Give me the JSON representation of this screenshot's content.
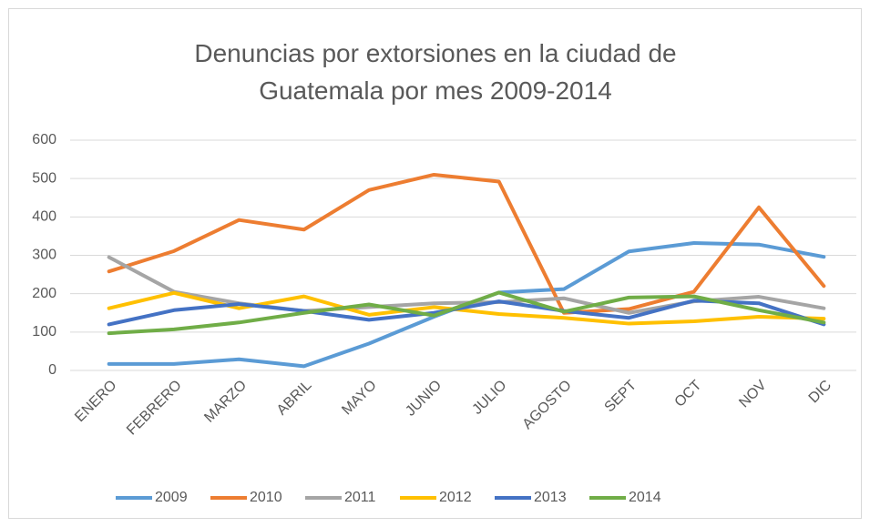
{
  "chart_data": {
    "type": "line",
    "title": "Denuncias por extorsiones en la ciudad de Guatemala por mes 2009-2014",
    "categories": [
      "ENERO",
      "FEBRERO",
      "MARZO",
      "ABRIL",
      "MAYO",
      "JUNIO",
      "JULIO",
      "AGOSTO",
      "SEPT",
      "OCT",
      "NOV",
      "DIC"
    ],
    "series": [
      {
        "name": "2009",
        "color": "#5B9BD5",
        "values": [
          17,
          17,
          29,
          11,
          70,
          140,
          203,
          212,
          310,
          332,
          328,
          296
        ]
      },
      {
        "name": "2010",
        "color": "#ED7D31",
        "values": [
          258,
          311,
          392,
          367,
          470,
          510,
          492,
          150,
          160,
          205,
          425,
          220
        ]
      },
      {
        "name": "2011",
        "color": "#A5A5A5",
        "values": [
          295,
          205,
          175,
          155,
          165,
          175,
          178,
          188,
          150,
          180,
          192,
          162
        ]
      },
      {
        "name": "2012",
        "color": "#FFC000",
        "values": [
          162,
          202,
          162,
          193,
          145,
          165,
          147,
          137,
          122,
          128,
          140,
          135
        ]
      },
      {
        "name": "2013",
        "color": "#4472C4",
        "values": [
          120,
          157,
          173,
          155,
          132,
          150,
          180,
          155,
          137,
          182,
          175,
          120
        ]
      },
      {
        "name": "2014",
        "color": "#70AD47",
        "values": [
          97,
          107,
          125,
          150,
          172,
          143,
          203,
          153,
          190,
          193,
          157,
          125
        ]
      }
    ],
    "ylim": [
      0,
      600
    ],
    "yticks": [
      0,
      100,
      200,
      300,
      400,
      500,
      600
    ],
    "grid": true,
    "legend": "bottom"
  }
}
